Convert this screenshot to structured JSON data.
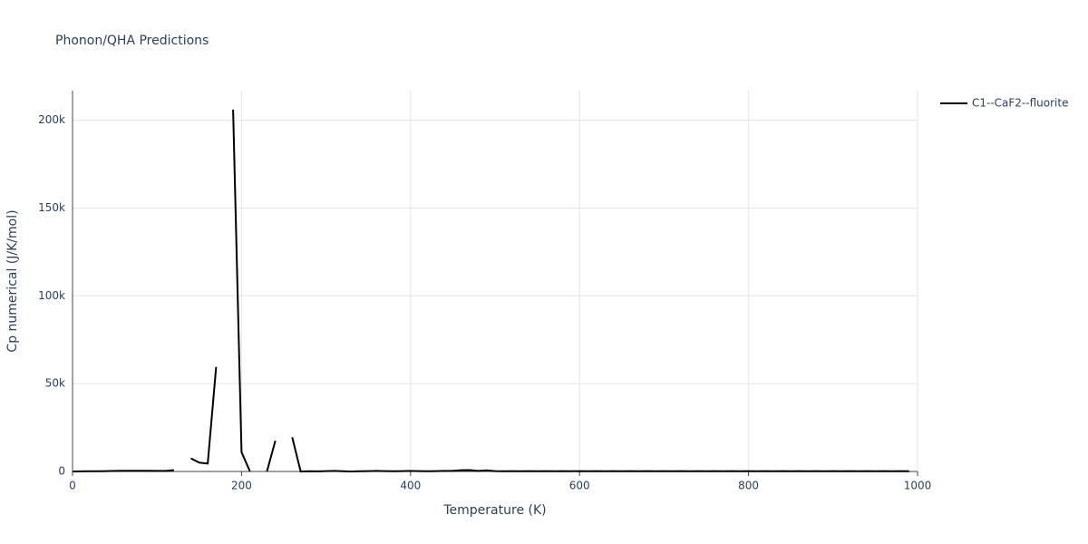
{
  "chart_data": {
    "type": "line",
    "title": "Phonon/QHA Predictions",
    "x_label": "Temperature (K)",
    "y_label": "Cp numerical (J/K/mol)",
    "x": [
      0,
      10,
      20,
      30,
      40,
      50,
      60,
      70,
      80,
      90,
      100,
      110,
      120,
      130,
      140,
      150,
      160,
      170,
      180,
      190,
      200,
      210,
      220,
      230,
      240,
      250,
      260,
      270,
      280,
      290,
      300,
      310,
      320,
      330,
      340,
      350,
      360,
      370,
      380,
      390,
      400,
      410,
      420,
      430,
      440,
      450,
      460,
      470,
      480,
      490,
      500,
      510,
      520,
      530,
      540,
      550,
      560,
      570,
      580,
      590,
      600,
      610,
      620,
      630,
      640,
      650,
      660,
      670,
      680,
      690,
      700,
      710,
      720,
      730,
      740,
      750,
      760,
      770,
      780,
      790,
      800,
      810,
      820,
      830,
      840,
      850,
      860,
      870,
      880,
      890,
      900,
      910,
      920,
      930,
      940,
      950,
      960,
      970,
      980,
      990
    ],
    "series": [
      {
        "name": "C1--CaF2--fluorite",
        "color": "#000000",
        "values": [
          0,
          50,
          100,
          150,
          200,
          300,
          350,
          400,
          400,
          350,
          300,
          300,
          800,
          null,
          7500,
          5000,
          4500,
          59500,
          null,
          206000,
          11000,
          0,
          null,
          0,
          17500,
          null,
          19500,
          0,
          100,
          50,
          200,
          300,
          100,
          0,
          100,
          200,
          300,
          200,
          100,
          200,
          300,
          200,
          100,
          200,
          300,
          400,
          700,
          800,
          300,
          600,
          200,
          100,
          200,
          100,
          200,
          100,
          200,
          100,
          200,
          100,
          200,
          100,
          200,
          100,
          200,
          100,
          200,
          100,
          200,
          100,
          200,
          100,
          200,
          100,
          200,
          100,
          200,
          100,
          200,
          100,
          200,
          100,
          200,
          100,
          200,
          100,
          200,
          100,
          200,
          100,
          200,
          100,
          200,
          100,
          200,
          100,
          200,
          100,
          200,
          100
        ]
      }
    ],
    "xlim": [
      0,
      1000
    ],
    "xticks": [
      0,
      200,
      400,
      600,
      800,
      1000
    ],
    "ylim": [
      0,
      216800
    ],
    "yticks": [
      0,
      {
        "value": 50000,
        "label": "50k"
      },
      {
        "value": 100000,
        "label": "100k"
      },
      {
        "value": 150000,
        "label": "150k"
      },
      {
        "value": 200000,
        "label": "200k"
      }
    ],
    "grid": true,
    "legend": "right"
  }
}
